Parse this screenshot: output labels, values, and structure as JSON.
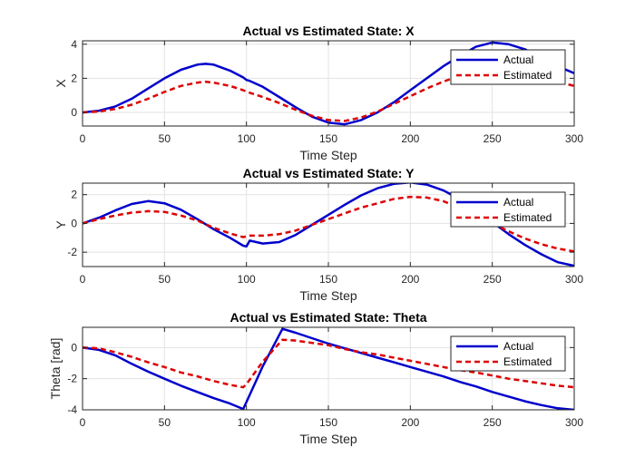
{
  "chart_data": [
    {
      "type": "line",
      "title": "Actual vs Estimated State: X",
      "xlabel": "Time Step",
      "ylabel": "X",
      "xlim": [
        0,
        300
      ],
      "ylim": [
        -0.8,
        4.2
      ],
      "xticks": [
        0,
        50,
        100,
        150,
        200,
        250,
        300
      ],
      "yticks": [
        0,
        2,
        4
      ],
      "grid": true,
      "legend": "top-right",
      "x": [
        0,
        10,
        20,
        30,
        40,
        50,
        60,
        70,
        75,
        80,
        90,
        98,
        100,
        102,
        110,
        120,
        130,
        140,
        150,
        160,
        170,
        180,
        190,
        200,
        210,
        220,
        230,
        240,
        250,
        260,
        270,
        280,
        290,
        300
      ],
      "series": [
        {
          "name": "Actual",
          "color": "#0000cc",
          "style": "solid",
          "values": [
            0.0,
            0.1,
            0.35,
            0.8,
            1.4,
            2.0,
            2.5,
            2.8,
            2.85,
            2.8,
            2.45,
            2.05,
            1.9,
            1.85,
            1.5,
            0.9,
            0.3,
            -0.25,
            -0.6,
            -0.7,
            -0.45,
            0.0,
            0.6,
            1.3,
            2.0,
            2.7,
            3.3,
            3.85,
            4.1,
            4.0,
            3.7,
            3.2,
            2.7,
            2.3
          ]
        },
        {
          "name": "Estimated",
          "color": "#dd0000",
          "style": "dashed",
          "values": [
            0.0,
            0.05,
            0.2,
            0.45,
            0.8,
            1.2,
            1.55,
            1.75,
            1.8,
            1.75,
            1.55,
            1.3,
            1.22,
            1.15,
            0.9,
            0.55,
            0.15,
            -0.2,
            -0.45,
            -0.5,
            -0.3,
            0.05,
            0.5,
            0.95,
            1.4,
            1.8,
            2.15,
            2.4,
            2.5,
            2.45,
            2.3,
            2.0,
            1.8,
            1.55
          ]
        }
      ]
    },
    {
      "type": "line",
      "title": "Actual vs Estimated State: Y",
      "xlabel": "Time Step",
      "ylabel": "Y",
      "xlim": [
        0,
        300
      ],
      "ylim": [
        -3,
        2.8
      ],
      "xticks": [
        0,
        50,
        100,
        150,
        200,
        250,
        300
      ],
      "yticks": [
        -2,
        0,
        2
      ],
      "grid": true,
      "legend": "top-right",
      "x": [
        0,
        10,
        20,
        30,
        40,
        50,
        60,
        70,
        80,
        90,
        98,
        100,
        102,
        110,
        120,
        130,
        140,
        150,
        160,
        170,
        180,
        190,
        200,
        210,
        220,
        230,
        240,
        250,
        260,
        270,
        280,
        290,
        300
      ],
      "series": [
        {
          "name": "Actual",
          "color": "#0000cc",
          "style": "solid",
          "values": [
            0.0,
            0.4,
            0.9,
            1.35,
            1.55,
            1.4,
            0.95,
            0.3,
            -0.4,
            -1.0,
            -1.55,
            -1.6,
            -1.2,
            -1.4,
            -1.3,
            -0.8,
            -0.1,
            0.6,
            1.3,
            1.95,
            2.45,
            2.75,
            2.85,
            2.7,
            2.3,
            1.7,
            0.95,
            0.1,
            -0.75,
            -1.5,
            -2.15,
            -2.7,
            -2.95
          ]
        },
        {
          "name": "Estimated",
          "color": "#dd0000",
          "style": "dashed",
          "values": [
            0.0,
            0.3,
            0.55,
            0.75,
            0.85,
            0.8,
            0.55,
            0.2,
            -0.3,
            -0.7,
            -0.95,
            -0.9,
            -0.85,
            -0.85,
            -0.75,
            -0.5,
            -0.1,
            0.3,
            0.7,
            1.1,
            1.4,
            1.7,
            1.85,
            1.8,
            1.55,
            1.1,
            0.55,
            0.0,
            -0.55,
            -1.05,
            -1.45,
            -1.75,
            -1.95
          ]
        }
      ]
    },
    {
      "type": "line",
      "title": "Actual vs Estimated State: Theta",
      "xlabel": "Time Step",
      "ylabel": "Theta [rad]",
      "xlim": [
        0,
        300
      ],
      "ylim": [
        -4,
        1.3
      ],
      "xticks": [
        0,
        50,
        100,
        150,
        200,
        250,
        300
      ],
      "yticks": [
        -4,
        -2,
        0
      ],
      "grid": true,
      "legend": "top-right",
      "x": [
        0,
        10,
        20,
        30,
        40,
        50,
        60,
        70,
        80,
        90,
        98,
        100,
        110,
        122,
        130,
        140,
        150,
        160,
        170,
        180,
        190,
        200,
        210,
        220,
        230,
        240,
        250,
        260,
        270,
        280,
        290,
        300
      ],
      "series": [
        {
          "name": "Actual",
          "color": "#0000cc",
          "style": "solid",
          "values": [
            0.0,
            -0.15,
            -0.5,
            -1.05,
            -1.55,
            -2.0,
            -2.45,
            -2.85,
            -3.25,
            -3.6,
            -3.95,
            -3.5,
            -1.2,
            1.2,
            0.95,
            0.6,
            0.25,
            -0.05,
            -0.35,
            -0.65,
            -0.95,
            -1.25,
            -1.55,
            -1.85,
            -2.2,
            -2.5,
            -2.85,
            -3.15,
            -3.45,
            -3.7,
            -3.9,
            -4.0
          ]
        },
        {
          "name": "Estimated",
          "color": "#dd0000",
          "style": "dashed",
          "values": [
            0.0,
            -0.05,
            -0.3,
            -0.6,
            -0.95,
            -1.25,
            -1.6,
            -1.85,
            -2.15,
            -2.4,
            -2.55,
            -2.35,
            -0.9,
            0.5,
            0.45,
            0.3,
            0.15,
            -0.1,
            -0.3,
            -0.45,
            -0.65,
            -0.85,
            -1.05,
            -1.25,
            -1.45,
            -1.6,
            -1.8,
            -2.0,
            -2.15,
            -2.3,
            -2.45,
            -2.55
          ]
        }
      ]
    }
  ]
}
